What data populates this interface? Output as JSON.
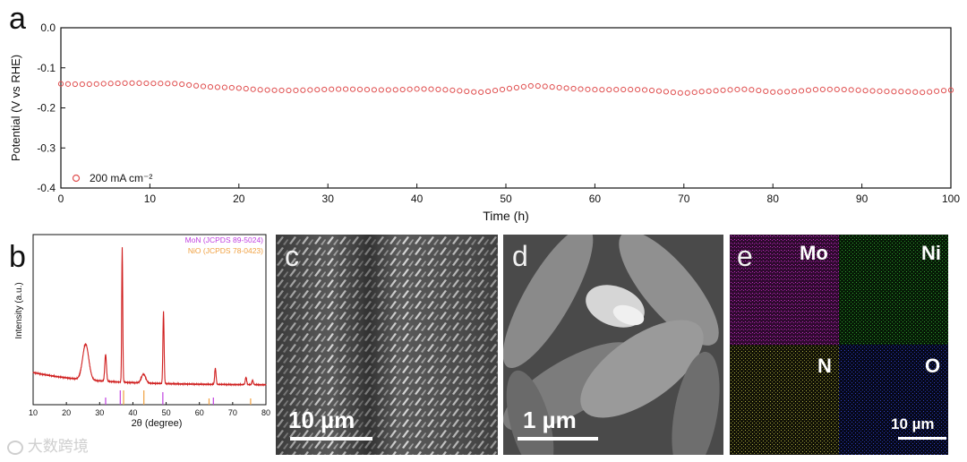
{
  "panels": {
    "a": {
      "letter": "a",
      "chart_data": {
        "type": "scatter",
        "xlabel": "Time (h)",
        "ylabel": "Potential (V vs RHE)",
        "xlim": [
          0,
          100
        ],
        "ylim": [
          -0.4,
          0.0
        ],
        "xticks": [
          "0",
          "10",
          "20",
          "30",
          "40",
          "50",
          "60",
          "70",
          "80",
          "90",
          "100"
        ],
        "yticks": [
          "0.0",
          "-0.1",
          "-0.2",
          "-0.3",
          "-0.4"
        ],
        "legend": "top-left",
        "series": [
          {
            "name": "200 mA cm⁻²",
            "color": "#e05050",
            "x": [
              0,
              5,
              10,
              13,
              17,
              22,
              30,
              40,
              47,
              50,
              53,
              56,
              60,
              65,
              70,
              72,
              77,
              80,
              85,
              90,
              95,
              97,
              100
            ],
            "y": [
              -0.14,
              -0.139,
              -0.14,
              -0.138,
              -0.148,
              -0.155,
              -0.155,
              -0.153,
              -0.16,
              -0.152,
              -0.146,
              -0.15,
              -0.153,
              -0.156,
              -0.162,
              -0.158,
              -0.155,
              -0.16,
              -0.154,
              -0.157,
              -0.158,
              -0.162,
              -0.157
            ]
          }
        ]
      }
    },
    "b": {
      "letter": "b",
      "chart_data": {
        "type": "line",
        "xlabel": "2θ (degree)",
        "ylabel": "Intensity (a.u.)",
        "xlim": [
          10,
          80
        ],
        "xticks": [
          "10",
          "20",
          "30",
          "40",
          "50",
          "60",
          "70",
          "80"
        ],
        "legend_entries": [
          {
            "name": "MoN (JCPDS 89-5024)",
            "color": "#c040e0"
          },
          {
            "name": "NiO (JCPDS 78-0423)",
            "color": "#f0a040"
          }
        ],
        "xrd_pattern": {
          "color": "#d02020",
          "peaks_2theta": [
            25.8,
            31.8,
            36.8,
            43.2,
            49.2,
            64.8,
            74.0,
            76.0
          ]
        },
        "reference_lines": {
          "MoN": [
            31.8,
            36.2,
            49.0,
            64.2
          ],
          "NiO": [
            37.2,
            43.3,
            62.9,
            75.4
          ]
        }
      }
    },
    "c": {
      "letter": "c",
      "scale": "10 µm"
    },
    "d": {
      "letter": "d",
      "scale": "1 µm"
    },
    "e": {
      "letter": "e",
      "scale": "10 µm",
      "maps": [
        {
          "label": "Mo",
          "color": "#c030c0"
        },
        {
          "label": "Ni",
          "color": "#30a030"
        },
        {
          "label": "N",
          "color": "#b0b040"
        },
        {
          "label": "O",
          "color": "#3040c0"
        }
      ]
    }
  },
  "watermark": "大数跨境"
}
